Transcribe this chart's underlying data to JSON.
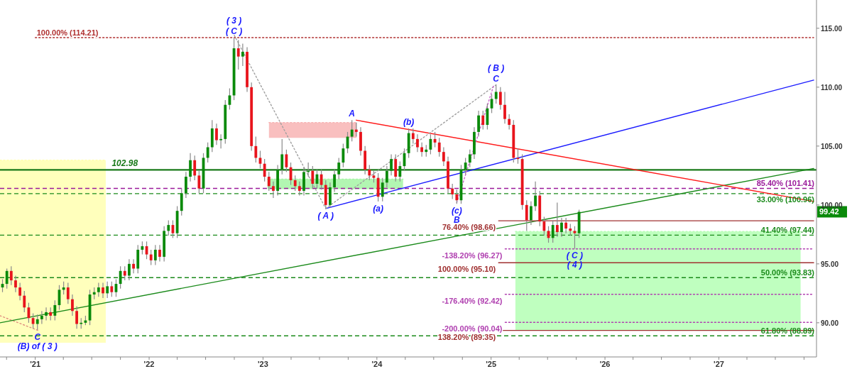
{
  "chart_data": {
    "type": "candlestick",
    "x": [
      "2020-09-18",
      "2020-10-02",
      "2020-10-16",
      "2020-10-30",
      "2020-11-13",
      "2020-11-27",
      "2020-12-11",
      "2020-12-25",
      "2021-01-08",
      "2021-01-22",
      "2021-02-05",
      "2021-02-19",
      "2021-03-05",
      "2021-03-19",
      "2021-04-02",
      "2021-04-16",
      "2021-04-30",
      "2021-05-14",
      "2021-05-28",
      "2021-06-11",
      "2021-06-25",
      "2021-07-09",
      "2021-07-23",
      "2021-08-06",
      "2021-08-20",
      "2021-09-03",
      "2021-09-17",
      "2021-10-01",
      "2021-10-15",
      "2021-10-29",
      "2021-11-12",
      "2021-11-26",
      "2021-12-10",
      "2021-12-24",
      "2022-01-07",
      "2022-01-21",
      "2022-02-04",
      "2022-02-18",
      "2022-03-04",
      "2022-03-18",
      "2022-04-01",
      "2022-04-15",
      "2022-04-29",
      "2022-05-13",
      "2022-05-27",
      "2022-06-10",
      "2022-06-24",
      "2022-07-08",
      "2022-07-22",
      "2022-08-05",
      "2022-08-19",
      "2022-09-02",
      "2022-09-16",
      "2022-09-30",
      "2022-10-14",
      "2022-10-28",
      "2022-11-11",
      "2022-11-25",
      "2022-12-09",
      "2022-12-23",
      "2023-01-06",
      "2023-01-20",
      "2023-02-03",
      "2023-02-17",
      "2023-03-03",
      "2023-03-17",
      "2023-03-31",
      "2023-04-14",
      "2023-04-28",
      "2023-05-12",
      "2023-05-26",
      "2023-06-09",
      "2023-06-23",
      "2023-07-07",
      "2023-07-21",
      "2023-08-04",
      "2023-08-18",
      "2023-09-01",
      "2023-09-15",
      "2023-09-29",
      "2023-10-13",
      "2023-10-27",
      "2023-11-10",
      "2023-11-24",
      "2023-12-08",
      "2023-12-22",
      "2024-01-05",
      "2024-01-19",
      "2024-02-02",
      "2024-02-16",
      "2024-03-01",
      "2024-03-15",
      "2024-03-29",
      "2024-04-12",
      "2024-04-26",
      "2024-05-10",
      "2024-05-24",
      "2024-06-07",
      "2024-06-21",
      "2024-07-05",
      "2024-07-19",
      "2024-08-02",
      "2024-08-16",
      "2024-08-30",
      "2024-09-13",
      "2024-09-27",
      "2024-10-11",
      "2024-10-25",
      "2024-11-08",
      "2024-11-22",
      "2024-12-06",
      "2024-12-20",
      "2025-01-03",
      "2025-01-17",
      "2025-01-31",
      "2025-02-14",
      "2025-02-28",
      "2025-03-14",
      "2025-03-28",
      "2025-04-11",
      "2025-04-25",
      "2025-05-09",
      "2025-05-23",
      "2025-06-06",
      "2025-06-20",
      "2025-07-04",
      "2025-07-18",
      "2025-08-01",
      "2025-08-15",
      "2025-08-29",
      "2025-09-12",
      "2025-09-26",
      "2025-10-10"
    ],
    "ohlc": [
      [
        93.0,
        93.7,
        92.6,
        93.3
      ],
      [
        93.3,
        94.6,
        92.9,
        94.4
      ],
      [
        94.4,
        94.8,
        93.2,
        93.6
      ],
      [
        93.6,
        94.0,
        92.6,
        93.0
      ],
      [
        93.0,
        93.4,
        91.9,
        92.3
      ],
      [
        92.3,
        92.7,
        90.9,
        91.3
      ],
      [
        91.3,
        91.7,
        90.0,
        90.4
      ],
      [
        90.4,
        90.8,
        89.5,
        89.9
      ],
      [
        89.9,
        90.7,
        89.4,
        90.3
      ],
      [
        90.3,
        91.0,
        89.9,
        90.6
      ],
      [
        90.6,
        91.3,
        90.2,
        90.9
      ],
      [
        90.9,
        91.3,
        90.2,
        90.6
      ],
      [
        90.6,
        91.9,
        90.2,
        91.5
      ],
      [
        91.5,
        93.2,
        91.1,
        92.8
      ],
      [
        92.8,
        93.5,
        92.4,
        93.0
      ],
      [
        93.0,
        93.4,
        91.6,
        92.0
      ],
      [
        92.0,
        92.4,
        90.6,
        91.0
      ],
      [
        91.0,
        91.4,
        89.5,
        89.9
      ],
      [
        89.9,
        90.4,
        89.5,
        90.0
      ],
      [
        90.0,
        90.6,
        89.8,
        90.2
      ],
      [
        90.2,
        92.8,
        89.8,
        92.4
      ],
      [
        92.4,
        93.0,
        92.0,
        92.6
      ],
      [
        92.6,
        93.4,
        92.2,
        93.0
      ],
      [
        93.0,
        93.4,
        92.1,
        92.5
      ],
      [
        92.5,
        93.5,
        92.1,
        93.1
      ],
      [
        93.1,
        93.5,
        92.2,
        92.6
      ],
      [
        92.6,
        93.7,
        92.2,
        93.3
      ],
      [
        93.3,
        94.8,
        92.9,
        94.4
      ],
      [
        94.4,
        94.8,
        93.6,
        94.0
      ],
      [
        94.0,
        95.4,
        93.6,
        95.0
      ],
      [
        95.0,
        95.4,
        94.2,
        94.6
      ],
      [
        94.6,
        96.6,
        94.2,
        96.2
      ],
      [
        96.2,
        96.9,
        95.8,
        96.5
      ],
      [
        96.5,
        96.9,
        95.4,
        95.8
      ],
      [
        95.8,
        96.2,
        94.9,
        95.3
      ],
      [
        95.3,
        96.6,
        94.9,
        96.2
      ],
      [
        96.2,
        96.6,
        95.2,
        95.6
      ],
      [
        95.6,
        98.2,
        95.2,
        97.8
      ],
      [
        97.8,
        98.7,
        97.4,
        98.3
      ],
      [
        98.3,
        98.7,
        97.2,
        97.6
      ],
      [
        97.6,
        99.9,
        97.2,
        99.5
      ],
      [
        99.5,
        101.4,
        99.1,
        101.0
      ],
      [
        101.0,
        102.8,
        100.6,
        102.4
      ],
      [
        102.4,
        104.4,
        102.0,
        103.8
      ],
      [
        103.8,
        104.2,
        102.1,
        102.5
      ],
      [
        102.5,
        102.9,
        101.0,
        101.4
      ],
      [
        101.4,
        104.4,
        101.0,
        104.0
      ],
      [
        104.0,
        105.3,
        103.6,
        104.9
      ],
      [
        104.9,
        107.2,
        104.5,
        106.5
      ],
      [
        106.5,
        106.9,
        105.1,
        105.5
      ],
      [
        105.5,
        106.0,
        104.8,
        105.6
      ],
      [
        105.6,
        108.9,
        105.2,
        108.5
      ],
      [
        108.5,
        109.9,
        108.1,
        109.3
      ],
      [
        109.3,
        114.21,
        108.9,
        113.3
      ],
      [
        113.3,
        114.0,
        111.5,
        112.6
      ],
      [
        112.6,
        113.7,
        111.8,
        113.0
      ],
      [
        113.0,
        113.4,
        109.6,
        110.0
      ],
      [
        110.0,
        110.4,
        104.6,
        105.0
      ],
      [
        105.0,
        105.8,
        103.6,
        104.0
      ],
      [
        104.0,
        104.6,
        103.1,
        103.5
      ],
      [
        103.5,
        103.9,
        102.0,
        102.4
      ],
      [
        102.4,
        102.8,
        101.2,
        101.6
      ],
      [
        101.6,
        102.0,
        100.6,
        101.2
      ],
      [
        101.2,
        103.4,
        100.8,
        103.0
      ],
      [
        103.0,
        105.6,
        102.6,
        104.3
      ],
      [
        104.3,
        104.7,
        102.8,
        103.2
      ],
      [
        103.2,
        103.6,
        101.7,
        102.1
      ],
      [
        102.1,
        102.5,
        101.2,
        101.6
      ],
      [
        101.6,
        102.0,
        100.8,
        101.2
      ],
      [
        101.2,
        103.2,
        100.8,
        102.8
      ],
      [
        102.8,
        103.6,
        102.4,
        102.9
      ],
      [
        102.9,
        103.3,
        101.4,
        101.8
      ],
      [
        101.8,
        103.0,
        101.4,
        102.6
      ],
      [
        102.6,
        103.0,
        101.3,
        101.7
      ],
      [
        101.7,
        102.1,
        99.7,
        100.0
      ],
      [
        100.0,
        101.9,
        99.8,
        101.5
      ],
      [
        101.5,
        103.0,
        101.1,
        102.6
      ],
      [
        102.6,
        104.0,
        102.2,
        103.6
      ],
      [
        103.6,
        105.2,
        103.2,
        104.8
      ],
      [
        104.8,
        106.2,
        104.4,
        105.8
      ],
      [
        105.8,
        107.2,
        105.4,
        106.4
      ],
      [
        106.4,
        107.0,
        105.8,
        106.2
      ],
      [
        106.2,
        106.6,
        104.2,
        104.6
      ],
      [
        104.6,
        105.0,
        102.6,
        103.0
      ],
      [
        103.0,
        103.4,
        102.1,
        102.5
      ],
      [
        102.5,
        102.9,
        101.9,
        102.3
      ],
      [
        102.3,
        102.7,
        100.3,
        100.7
      ],
      [
        100.7,
        102.3,
        100.3,
        101.9
      ],
      [
        101.9,
        103.3,
        101.5,
        102.9
      ],
      [
        102.9,
        104.3,
        102.5,
        103.9
      ],
      [
        103.9,
        104.3,
        102.0,
        102.4
      ],
      [
        102.4,
        103.7,
        102.0,
        103.3
      ],
      [
        103.3,
        104.8,
        102.9,
        104.4
      ],
      [
        104.4,
        106.5,
        104.0,
        106.1
      ],
      [
        106.1,
        106.5,
        105.2,
        105.6
      ],
      [
        105.6,
        106.0,
        104.5,
        104.9
      ],
      [
        104.9,
        105.3,
        104.1,
        104.5
      ],
      [
        104.5,
        105.1,
        104.1,
        104.7
      ],
      [
        104.7,
        106.0,
        104.3,
        105.6
      ],
      [
        105.6,
        106.2,
        104.9,
        105.3
      ],
      [
        105.3,
        105.7,
        104.1,
        104.5
      ],
      [
        104.5,
        104.9,
        103.3,
        103.7
      ],
      [
        103.7,
        104.1,
        101.0,
        101.4
      ],
      [
        101.4,
        101.8,
        100.5,
        100.9
      ],
      [
        100.9,
        101.3,
        100.1,
        100.4
      ],
      [
        100.4,
        103.4,
        100.1,
        103.0
      ],
      [
        103.0,
        104.0,
        102.6,
        103.6
      ],
      [
        103.6,
        104.7,
        103.2,
        104.3
      ],
      [
        104.3,
        106.6,
        103.9,
        106.2
      ],
      [
        106.2,
        108.0,
        105.8,
        107.6
      ],
      [
        107.6,
        108.0,
        106.4,
        106.8
      ],
      [
        106.8,
        108.6,
        106.4,
        108.2
      ],
      [
        108.2,
        109.4,
        107.8,
        109.0
      ],
      [
        109.0,
        110.2,
        108.6,
        109.6
      ],
      [
        109.6,
        110.0,
        108.1,
        108.5
      ],
      [
        108.5,
        109.6,
        106.9,
        107.3
      ],
      [
        107.3,
        107.7,
        106.4,
        106.8
      ],
      [
        106.8,
        107.2,
        103.6,
        104.0
      ],
      [
        104.0,
        104.8,
        103.5,
        103.9
      ],
      [
        103.9,
        104.3,
        99.6,
        100.0
      ],
      [
        100.0,
        100.4,
        97.8,
        98.7
      ],
      [
        98.7,
        100.3,
        98.3,
        99.9
      ],
      [
        99.9,
        102.0,
        99.5,
        100.8
      ],
      [
        100.8,
        101.2,
        98.2,
        98.6
      ],
      [
        98.6,
        99.0,
        97.4,
        97.8
      ],
      [
        97.8,
        98.2,
        96.8,
        97.2
      ],
      [
        97.2,
        98.7,
        96.8,
        98.3
      ],
      [
        98.3,
        100.2,
        97.3,
        97.7
      ],
      [
        97.7,
        98.9,
        97.3,
        98.5
      ],
      [
        98.5,
        98.9,
        97.6,
        98.0
      ],
      [
        98.0,
        98.4,
        97.4,
        97.8
      ],
      [
        97.8,
        98.2,
        96.3,
        97.6
      ],
      [
        97.6,
        99.6,
        97.2,
        99.42
      ]
    ],
    "colors": [
      "#0a8a0a",
      "#0a8a0a",
      "#e8141c",
      "#e8141c",
      "#e8141c",
      "#e8141c",
      "#e8141c",
      "#e8141c",
      "#0a8a0a",
      "#0a8a0a",
      "#0a8a0a",
      "#e8141c",
      "#0a8a0a",
      "#0a8a0a",
      "#0a8a0a",
      "#e8141c",
      "#e8141c",
      "#e8141c",
      "#0a8a0a",
      "#0a8a0a",
      "#0a8a0a",
      "#0a8a0a",
      "#0a8a0a",
      "#e8141c",
      "#0a8a0a",
      "#e8141c",
      "#0a8a0a",
      "#0a8a0a",
      "#e8141c",
      "#0a8a0a",
      "#e8141c",
      "#0a8a0a",
      "#0a8a0a",
      "#e8141c",
      "#e8141c",
      "#0a8a0a",
      "#e8141c",
      "#0a8a0a",
      "#0a8a0a",
      "#e8141c",
      "#0a8a0a",
      "#0a8a0a",
      "#0a8a0a",
      "#0a8a0a",
      "#e8141c",
      "#e8141c",
      "#0a8a0a",
      "#0a8a0a",
      "#0a8a0a",
      "#e8141c",
      "#0a8a0a",
      "#0a8a0a",
      "#0a8a0a",
      "#0a8a0a",
      "#e8141c",
      "#0a8a0a",
      "#e8141c",
      "#e8141c",
      "#e8141c",
      "#e8141c",
      "#e8141c",
      "#e8141c",
      "#e8141c",
      "#0a8a0a",
      "#0a8a0a",
      "#e8141c",
      "#e8141c",
      "#e8141c",
      "#e8141c",
      "#0a8a0a",
      "#0a8a0a",
      "#e8141c",
      "#0a8a0a",
      "#e8141c",
      "#e8141c",
      "#0a8a0a",
      "#0a8a0a",
      "#0a8a0a",
      "#0a8a0a",
      "#0a8a0a",
      "#0a8a0a",
      "#e8141c",
      "#e8141c",
      "#e8141c",
      "#e8141c",
      "#e8141c",
      "#e8141c",
      "#0a8a0a",
      "#0a8a0a",
      "#0a8a0a",
      "#e8141c",
      "#0a8a0a",
      "#0a8a0a",
      "#0a8a0a",
      "#e8141c",
      "#e8141c",
      "#e8141c",
      "#0a8a0a",
      "#0a8a0a",
      "#e8141c",
      "#e8141c",
      "#e8141c",
      "#e8141c",
      "#e8141c",
      "#e8141c",
      "#0a8a0a",
      "#0a8a0a",
      "#0a8a0a",
      "#0a8a0a",
      "#0a8a0a",
      "#e8141c",
      "#0a8a0a",
      "#0a8a0a",
      "#0a8a0a",
      "#e8141c",
      "#e8141c",
      "#e8141c",
      "#e8141c",
      "#e8141c",
      "#e8141c",
      "#e8141c",
      "#0a8a0a",
      "#0a8a0a",
      "#e8141c",
      "#e8141c",
      "#e8141c",
      "#0a8a0a",
      "#e8141c",
      "#0a8a0a",
      "#e8141c",
      "#e8141c",
      "#e8141c",
      "#0a8a0a"
    ],
    "xlim": [
      "2020-09-10",
      "2027-11-10"
    ],
    "xticks": [
      {
        "value": "2020-10-01",
        "label": null
      },
      {
        "value": "2021-01-01",
        "label": "'21"
      },
      {
        "value": "2021-04-01",
        "label": null
      },
      {
        "value": "2021-07-01",
        "label": null
      },
      {
        "value": "2021-10-01",
        "label": null
      },
      {
        "value": "2022-01-01",
        "label": "'22"
      },
      {
        "value": "2022-04-01",
        "label": null
      },
      {
        "value": "2022-07-01",
        "label": null
      },
      {
        "value": "2022-10-01",
        "label": null
      },
      {
        "value": "2023-01-01",
        "label": "'23"
      },
      {
        "value": "2023-04-01",
        "label": null
      },
      {
        "value": "2023-07-01",
        "label": null
      },
      {
        "value": "2023-10-01",
        "label": null
      },
      {
        "value": "2024-01-01",
        "label": "'24"
      },
      {
        "value": "2024-04-01",
        "label": null
      },
      {
        "value": "2024-07-01",
        "label": null
      },
      {
        "value": "2024-10-01",
        "label": null
      },
      {
        "value": "2025-01-01",
        "label": "'25"
      },
      {
        "value": "2025-04-01",
        "label": null
      },
      {
        "value": "2025-07-01",
        "label": null
      },
      {
        "value": "2025-10-01",
        "label": null
      },
      {
        "value": "2026-01-01",
        "label": "'26"
      },
      {
        "value": "2026-04-01",
        "label": null
      },
      {
        "value": "2026-07-01",
        "label": null
      },
      {
        "value": "2026-10-01",
        "label": null
      },
      {
        "value": "2027-01-01",
        "label": "'27"
      },
      {
        "value": "2027-04-01",
        "label": null
      },
      {
        "value": "2027-07-01",
        "label": null
      },
      {
        "value": "2027-10-01",
        "label": null
      }
    ],
    "ylim": [
      87.1,
      117.4
    ],
    "yticks": [
      {
        "value": 90,
        "label": "90.00"
      },
      {
        "value": 95,
        "label": "95.00"
      },
      {
        "value": 100,
        "label": "100.00"
      },
      {
        "value": 105,
        "label": "105.00"
      },
      {
        "value": 110,
        "label": "110.00"
      },
      {
        "value": 115,
        "label": "115.00"
      }
    ],
    "series": [
      {
        "type": "line",
        "line_style": "dotted",
        "color": "#ffffb0",
        "x": [
          "2020-09-10",
          "2021-08-15"
        ],
        "values": [
          103.8,
          103.8
        ],
        "lower": [
          88.3,
          88.3
        ],
        "upper": [
          103.8,
          103.8
        ]
      },
      {
        "type": "line",
        "line_style": "dotted",
        "color": "#f8b4b4",
        "x": [
          "2023-01-20",
          "2023-10-28"
        ],
        "values": [
          107.0,
          107.0
        ],
        "lower": [
          105.7,
          105.7
        ],
        "upper": [
          107.0,
          107.0
        ]
      },
      {
        "type": "line",
        "line_style": "dotted",
        "color": "#a4f4a4",
        "x": [
          "2023-01-15",
          "2024-03-25"
        ],
        "values": [
          102.2,
          102.2
        ],
        "lower": [
          101.35,
          101.35
        ],
        "upper": [
          102.2,
          102.2
        ]
      },
      {
        "type": "line",
        "line_style": "dotted",
        "color": "#b4ffb4",
        "x": [
          "2025-03-20",
          "2027-09-20"
        ],
        "values": [
          97.75,
          97.75
        ],
        "lower": [
          89.35,
          89.35
        ],
        "upper": [
          97.75,
          97.75
        ]
      },
      {
        "type": "line",
        "color": "#e09080",
        "line_style": "dotted",
        "x": [
          "2020-09-10",
          "2021-01-15"
        ],
        "values": [
          90.6,
          89.3
        ]
      },
      {
        "type": "line",
        "color": "#1a8a1a",
        "line_style": "solid",
        "x": [
          "2020-09-10",
          "2027-11-01"
        ],
        "values": [
          90.0,
          103.1
        ]
      },
      {
        "type": "line",
        "color": "#1a1aff",
        "line_style": "solid",
        "x": [
          "2023-07-21",
          "2027-11-01"
        ],
        "values": [
          99.7,
          110.6
        ]
      },
      {
        "type": "line",
        "color": "#ff1a1a",
        "line_style": "solid",
        "x": [
          "2023-10-27",
          "2027-11-01"
        ],
        "values": [
          107.2,
          100.3
        ]
      },
      {
        "type": "line",
        "color": "#a0a0a0",
        "line_style": "dotted",
        "x": [
          "2022-10-01",
          "2023-07-21"
        ],
        "values": [
          114.4,
          99.7
        ]
      },
      {
        "type": "line",
        "color": "#a0a0a0",
        "line_style": "dotted",
        "x": [
          "2023-07-21",
          "2025-01-17"
        ],
        "values": [
          99.7,
          110.2
        ]
      },
      {
        "type": "line",
        "color": "#cc66cc",
        "line_style": "dotted",
        "x": [
          "2024-09-13",
          "2025-01-10"
        ],
        "values": [
          100.2,
          110.2
        ]
      },
      {
        "type": "line",
        "name": "100.00% (114.21)",
        "color": "#b03030",
        "line_style": "dotted",
        "x": [
          "2021-01-01",
          "2027-11-01"
        ],
        "values": [
          114.21,
          114.21
        ]
      },
      {
        "type": "line",
        "name": "76.40% (98.66)",
        "color": "#a03030",
        "line_style": "solid",
        "x": [
          "2025-01-25",
          "2027-11-01"
        ],
        "values": [
          98.66,
          98.66
        ]
      },
      {
        "type": "line",
        "name": "100.00% (95.10)",
        "color": "#a03030",
        "line_style": "solid",
        "x": [
          "2025-01-25",
          "2027-11-01"
        ],
        "values": [
          95.1,
          95.1
        ]
      },
      {
        "type": "line",
        "name": "138.20% (89.35)",
        "color": "#a03030",
        "line_style": "solid",
        "x": [
          "2025-01-25",
          "2027-11-01"
        ],
        "values": [
          89.35,
          89.35
        ]
      },
      {
        "type": "line",
        "name": "-138.20% (96.27)",
        "color": "#b040b0",
        "line_style": "dotted",
        "x": [
          "2025-02-15",
          "2027-11-01"
        ],
        "values": [
          96.27,
          96.27
        ]
      },
      {
        "type": "line",
        "name": "-176.40% (92.42)",
        "color": "#b040b0",
        "line_style": "dotted",
        "x": [
          "2025-02-15",
          "2027-11-01"
        ],
        "values": [
          92.42,
          92.42
        ]
      },
      {
        "type": "line",
        "name": "-200.00% (90.04)",
        "color": "#b040b0",
        "line_style": "dotted",
        "x": [
          "2025-02-15",
          "2027-11-01"
        ],
        "values": [
          90.04,
          90.04
        ]
      }
    ],
    "ref_lines": [
      {
        "axis": "y",
        "value": 102.98,
        "color": "#1a7a1a",
        "line_style": "solid"
      },
      {
        "axis": "y",
        "value": 101.41,
        "label": "85.40% (101.41)",
        "color": "#9a1a9a",
        "line_style": "dashed"
      },
      {
        "axis": "y",
        "value": 100.96,
        "label": "33.00% (100.96)",
        "color": "#1a8a1a",
        "line_style": "dashed"
      },
      {
        "axis": "y",
        "value": 97.44,
        "label": "41.40% (97.44)",
        "color": "#1a8a1a",
        "line_style": "dashed"
      },
      {
        "axis": "y",
        "value": 93.83,
        "label": "50.00% (93.83)",
        "color": "#1a8a1a",
        "line_style": "dashed"
      },
      {
        "axis": "y",
        "value": 88.89,
        "label": "61.80% (88.89)",
        "color": "#1a8a1a",
        "line_style": "dashed"
      }
    ],
    "annotations": [
      {
        "text": "102.98",
        "x": "2021-10-15",
        "y": 102.98
      },
      {
        "text": "( 3 )",
        "x": "2022-09-30",
        "y": 114.21
      },
      {
        "text": "( C )",
        "x": "2022-09-30",
        "y": 114.21
      },
      {
        "text": "C",
        "x": "2021-01-08",
        "y": 89.4
      },
      {
        "text": "(B) of ( 3 )",
        "x": "2021-01-08",
        "y": 89.4
      },
      {
        "text": "( A )",
        "x": "2023-07-21",
        "y": 99.7
      },
      {
        "text": "A",
        "x": "2023-10-13",
        "y": 107.2
      },
      {
        "text": "(b)",
        "x": "2024-04-12",
        "y": 106.5
      },
      {
        "text": "(a)",
        "x": "2024-01-05",
        "y": 100.3
      },
      {
        "text": "(c)",
        "x": "2024-09-13",
        "y": 100.1
      },
      {
        "text": "B",
        "x": "2024-09-13",
        "y": 100.1
      },
      {
        "text": "( B )",
        "x": "2025-01-17",
        "y": 110.2
      },
      {
        "text": "C",
        "x": "2025-01-17",
        "y": 110.2
      },
      {
        "text": "( C )",
        "x": "2025-09-26",
        "y": 96.3
      },
      {
        "text": "( 4 )",
        "x": "2025-09-26",
        "y": 96.3
      },
      "99.42"
    ]
  }
}
